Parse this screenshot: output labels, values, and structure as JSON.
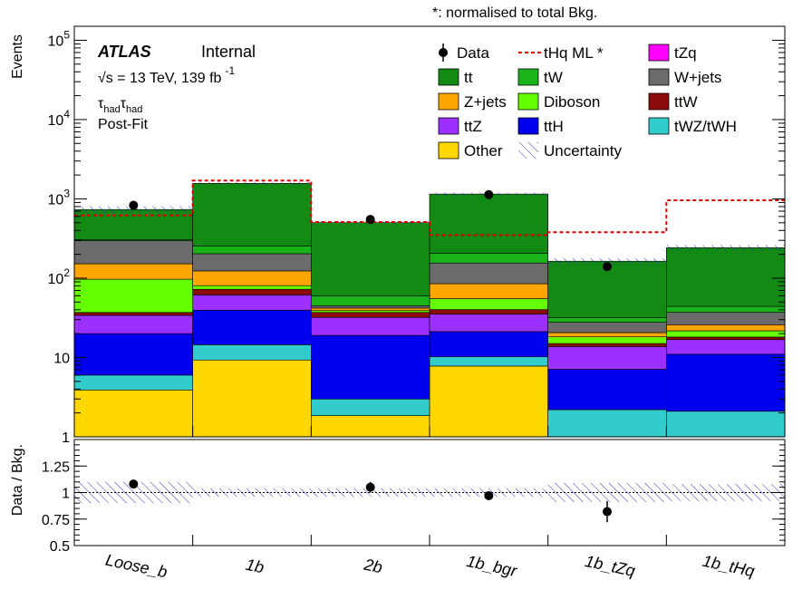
{
  "header_note": "*: normalised to total Bkg.",
  "atlas": {
    "label": "ATLAS",
    "status": "Internal",
    "energy_prefix": "√s = 13 TeV, 139 fb",
    "energy_exp": "-1"
  },
  "region": {
    "tau": "τ",
    "sub": "had",
    "fit": "Post-Fit"
  },
  "colors": {
    "tt": "#138a13",
    "tW": "#1ab41a",
    "W+jets": "#6b6b6b",
    "Z+jets": "#ffa500",
    "Diboson": "#66ff00",
    "ttW": "#8b0a0a",
    "ttZ": "#9b30ff",
    "ttH": "#0000ee",
    "tWZ/tWH": "#33cccc",
    "Other": "#ffd700",
    "tZq": "#ff00ff",
    "signal": "#dd0000",
    "uncertainty": "#3333cc"
  },
  "chart_data": [
    {
      "type": "bar",
      "stacked": true,
      "yscale": "log",
      "ylim": [
        1,
        150000
      ],
      "ylabel": "Events",
      "yticks": [
        "1",
        "10",
        "10^2",
        "10^3",
        "10^4",
        "10^5"
      ],
      "categories": [
        "Loose_b",
        "1b",
        "2b",
        "1b_bgr",
        "1b_tZq",
        "1b_tHq"
      ],
      "series": [
        {
          "name": "Other",
          "key": "Other",
          "values": [
            3.9,
            9.3,
            1.85,
            7.8,
            1.0,
            1.0
          ]
        },
        {
          "name": "tWZ/tWH",
          "key": "tWZ/tWH",
          "values": [
            2.1,
            5.2,
            1.15,
            2.4,
            1.2,
            1.1
          ]
        },
        {
          "name": "ttH",
          "key": "ttH",
          "values": [
            14,
            25,
            16,
            11,
            4.9,
            8.9
          ]
        },
        {
          "name": "ttZ",
          "key": "ttZ",
          "values": [
            14,
            22,
            13,
            14,
            6.6,
            5.8
          ]
        },
        {
          "name": "ttW",
          "key": "ttW",
          "values": [
            3,
            11,
            5,
            5,
            1.3,
            1.3
          ]
        },
        {
          "name": "Diboson",
          "key": "Diboson",
          "values": [
            60,
            8,
            2,
            15,
            3.2,
            3.6
          ]
        },
        {
          "name": "Z+jets",
          "key": "Z+jets",
          "values": [
            55,
            43,
            3,
            30,
            2.4,
            4.2
          ]
        },
        {
          "name": "W+jets",
          "key": "W+jets",
          "values": [
            145,
            80,
            3,
            70,
            7.2,
            11.2
          ]
        },
        {
          "name": "tW",
          "key": "tW",
          "values": [
            10,
            50,
            15,
            50,
            4,
            7
          ]
        },
        {
          "name": "tt",
          "key": "tt",
          "values": [
            427,
            1316,
            441,
            945,
            132,
            198
          ]
        },
        {
          "name": "tZq",
          "key": "tZq",
          "values": [
            0,
            0,
            0,
            0,
            0,
            0
          ]
        }
      ],
      "signal": {
        "name": "tHq ML *",
        "values": [
          620,
          1700,
          510,
          350,
          380,
          960
        ]
      },
      "data": {
        "name": "Data",
        "values": [
          830,
          null,
          550,
          1130,
          140,
          null
        ],
        "err_hi": [
          30,
          null,
          25,
          35,
          14,
          null
        ],
        "err_lo": [
          30,
          null,
          25,
          35,
          14,
          null
        ]
      },
      "legend": [
        [
          "Data",
          "tHq ML *",
          "tZq"
        ],
        [
          "tt",
          "tW",
          "W+jets"
        ],
        [
          "Z+jets",
          "Diboson",
          "ttW"
        ],
        [
          "ttZ",
          "ttH",
          "tWZ/tWH"
        ],
        [
          "Other",
          "Uncertainty",
          ""
        ]
      ]
    },
    {
      "type": "scatter",
      "ylabel": "Data / Bkg.",
      "ylim": [
        0.5,
        1.5
      ],
      "yticks": [
        "0.5",
        "0.75",
        "1",
        "1.25"
      ],
      "categories": [
        "Loose_b",
        "1b",
        "2b",
        "1b_bgr",
        "1b_tZq",
        "1b_tHq"
      ],
      "ratio": [
        1.08,
        null,
        1.05,
        0.97,
        0.82,
        null
      ],
      "ratio_err": [
        0.04,
        null,
        0.05,
        0.03,
        0.1,
        null
      ],
      "band": [
        0.1,
        0.04,
        0.04,
        0.04,
        0.09,
        0.08
      ]
    }
  ]
}
